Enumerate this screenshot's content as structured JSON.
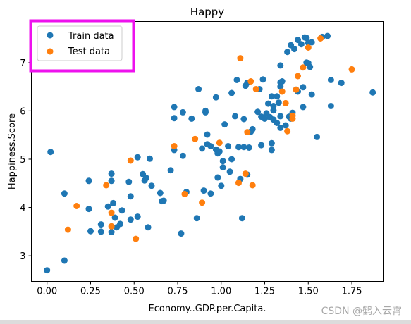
{
  "chart_data": {
    "type": "scatter",
    "title": "Happy",
    "xlabel": "Economy..GDP.per.Capita.",
    "ylabel": "Happiness.Score",
    "xlim": [
      -0.09,
      1.93
    ],
    "ylim": [
      2.47,
      7.85
    ],
    "xticks": [
      0.0,
      0.25,
      0.5,
      0.75,
      1.0,
      1.25,
      1.5,
      1.75
    ],
    "xtick_labels": [
      "0.00",
      "0.25",
      "0.50",
      "0.75",
      "1.00",
      "1.25",
      "1.50",
      "1.75"
    ],
    "yticks": [
      3,
      4,
      5,
      6,
      7
    ],
    "ytick_labels": [
      "3",
      "4",
      "5",
      "6",
      "7"
    ],
    "grid": false,
    "legend_position": "top-left",
    "series": [
      {
        "name": "Train data",
        "color": "#1f77b4",
        "points": [
          [
            0.0,
            2.7
          ],
          [
            0.02,
            5.15
          ],
          [
            0.1,
            2.9
          ],
          [
            0.1,
            4.29
          ],
          [
            0.24,
            4.55
          ],
          [
            0.24,
            3.97
          ],
          [
            0.25,
            3.51
          ],
          [
            0.31,
            3.65
          ],
          [
            0.31,
            3.5
          ],
          [
            0.35,
            4.02
          ],
          [
            0.37,
            4.7
          ],
          [
            0.37,
            4.55
          ],
          [
            0.37,
            3.49
          ],
          [
            0.38,
            4.09
          ],
          [
            0.39,
            3.79
          ],
          [
            0.4,
            3.59
          ],
          [
            0.42,
            3.66
          ],
          [
            0.43,
            3.94
          ],
          [
            0.47,
            4.53
          ],
          [
            0.48,
            3.75
          ],
          [
            0.48,
            4.23
          ],
          [
            0.52,
            5.04
          ],
          [
            0.52,
            3.81
          ],
          [
            0.55,
            4.69
          ],
          [
            0.56,
            4.56
          ],
          [
            0.57,
            4.61
          ],
          [
            0.58,
            3.59
          ],
          [
            0.59,
            5.01
          ],
          [
            0.6,
            4.45
          ],
          [
            0.65,
            4.3
          ],
          [
            0.66,
            4.13
          ],
          [
            0.67,
            4.14
          ],
          [
            0.71,
            4.77
          ],
          [
            0.73,
            5.19
          ],
          [
            0.73,
            5.85
          ],
          [
            0.73,
            6.08
          ],
          [
            0.77,
            3.46
          ],
          [
            0.78,
            5.97
          ],
          [
            0.78,
            5.07
          ],
          [
            0.8,
            4.32
          ],
          [
            0.83,
            5.84
          ],
          [
            0.86,
            3.78
          ],
          [
            0.87,
            6.45
          ],
          [
            0.89,
            5.22
          ],
          [
            0.9,
            4.35
          ],
          [
            0.91,
            5.97
          ],
          [
            0.91,
            6.0
          ],
          [
            0.92,
            5.51
          ],
          [
            0.92,
            5.31
          ],
          [
            0.94,
            5.27
          ],
          [
            0.94,
            4.29
          ],
          [
            0.97,
            5.2
          ],
          [
            0.97,
            6.28
          ],
          [
            0.98,
            4.62
          ],
          [
            0.98,
            5.12
          ],
          [
            0.99,
            5.16
          ],
          [
            1.0,
            4.45
          ],
          [
            1.01,
            4.83
          ],
          [
            1.01,
            4.96
          ],
          [
            1.02,
            5.72
          ],
          [
            1.04,
            5.27
          ],
          [
            1.05,
            4.74
          ],
          [
            1.06,
            5.0
          ],
          [
            1.06,
            6.37
          ],
          [
            1.08,
            5.89
          ],
          [
            1.09,
            6.64
          ],
          [
            1.1,
            5.25
          ],
          [
            1.11,
            4.59
          ],
          [
            1.12,
            3.78
          ],
          [
            1.13,
            5.83
          ],
          [
            1.13,
            5.25
          ],
          [
            1.14,
            6.52
          ],
          [
            1.15,
            6.58
          ],
          [
            1.15,
            4.68
          ],
          [
            1.16,
            5.24
          ],
          [
            1.17,
            5.57
          ],
          [
            1.18,
            5.62
          ],
          [
            1.21,
            5.98
          ],
          [
            1.22,
            6.45
          ],
          [
            1.23,
            5.88
          ],
          [
            1.23,
            5.29
          ],
          [
            1.24,
            6.65
          ],
          [
            1.25,
            5.84
          ],
          [
            1.26,
            5.95
          ],
          [
            1.27,
            6.15
          ],
          [
            1.28,
            5.87
          ],
          [
            1.29,
            6.3
          ],
          [
            1.29,
            5.33
          ],
          [
            1.29,
            5.19
          ],
          [
            1.3,
            6.01
          ],
          [
            1.3,
            6.1
          ],
          [
            1.3,
            5.82
          ],
          [
            1.32,
            5.75
          ],
          [
            1.32,
            6.3
          ],
          [
            1.33,
            6.17
          ],
          [
            1.34,
            6.59
          ],
          [
            1.34,
            5.89
          ],
          [
            1.34,
            6.94
          ],
          [
            1.34,
            6.5
          ],
          [
            1.34,
            5.65
          ],
          [
            1.35,
            6.61
          ],
          [
            1.37,
            5.7
          ],
          [
            1.38,
            7.22
          ],
          [
            1.39,
            5.88
          ],
          [
            1.4,
            7.36
          ],
          [
            1.4,
            5.84
          ],
          [
            1.41,
            5.96
          ],
          [
            1.42,
            7.28
          ],
          [
            1.43,
            6.44
          ],
          [
            1.44,
            6.4
          ],
          [
            1.44,
            7.47
          ],
          [
            1.46,
            7.38
          ],
          [
            1.47,
            6.08
          ],
          [
            1.47,
            6.49
          ],
          [
            1.48,
            7.52
          ],
          [
            1.49,
            7.51
          ],
          [
            1.49,
            7.0
          ],
          [
            1.5,
            6.99
          ],
          [
            1.5,
            7.41
          ],
          [
            1.51,
            6.91
          ],
          [
            1.52,
            6.34
          ],
          [
            1.52,
            7.42
          ],
          [
            1.55,
            5.46
          ],
          [
            1.58,
            7.53
          ],
          [
            1.61,
            7.55
          ],
          [
            1.63,
            6.1
          ],
          [
            1.63,
            6.64
          ],
          [
            1.69,
            6.58
          ],
          [
            1.87,
            6.38
          ]
        ]
      },
      {
        "name": "Test data",
        "color": "#ff7f0e",
        "points": [
          [
            0.12,
            3.54
          ],
          [
            0.17,
            4.03
          ],
          [
            0.34,
            4.46
          ],
          [
            0.37,
            3.61
          ],
          [
            0.37,
            3.89
          ],
          [
            0.48,
            4.97
          ],
          [
            0.51,
            3.35
          ],
          [
            0.73,
            5.27
          ],
          [
            0.79,
            4.28
          ],
          [
            0.85,
            5.42
          ],
          [
            0.89,
            4.1
          ],
          [
            0.99,
            5.34
          ],
          [
            1.1,
            4.51
          ],
          [
            1.11,
            7.09
          ],
          [
            1.14,
            4.7
          ],
          [
            1.15,
            5.56
          ],
          [
            1.17,
            6.61
          ],
          [
            1.18,
            4.46
          ],
          [
            1.2,
            6.45
          ],
          [
            1.35,
            6.4
          ],
          [
            1.37,
            6.16
          ],
          [
            1.38,
            5.58
          ],
          [
            1.41,
            5.84
          ],
          [
            1.41,
            5.9
          ],
          [
            1.43,
            6.44
          ],
          [
            1.44,
            6.72
          ],
          [
            1.47,
            6.9
          ],
          [
            1.5,
            7.31
          ],
          [
            1.57,
            7.5
          ],
          [
            1.75,
            6.86
          ]
        ]
      }
    ]
  },
  "watermark": "CSDN @鹤入云霄",
  "colors": {
    "legend_highlight": "#ee11ee",
    "axis": "#000000"
  }
}
